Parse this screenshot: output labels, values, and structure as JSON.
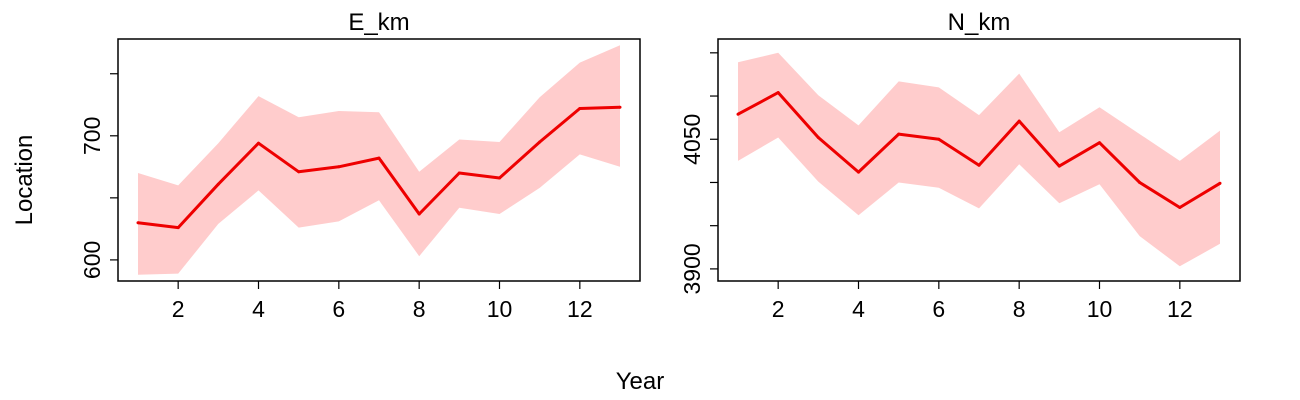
{
  "figure": {
    "shared_xlabel": "Year",
    "shared_ylabel": "Location"
  },
  "colors": {
    "line": "#ee0000",
    "band": "#ffcccc",
    "axis": "#000000"
  },
  "chart_data": [
    {
      "type": "line",
      "title": "E_km",
      "xlabel": "Year",
      "ylabel": "Location",
      "xlim": [
        1,
        13
      ],
      "ylim": [
        583,
        778
      ],
      "x": [
        1,
        2,
        3,
        4,
        5,
        6,
        7,
        8,
        9,
        10,
        11,
        12,
        13
      ],
      "xticks": [
        2,
        4,
        6,
        8,
        10,
        12
      ],
      "xtick_labels": [
        "2",
        "4",
        "6",
        "8",
        "10",
        "12"
      ],
      "yticks": [
        600,
        650,
        700,
        750
      ],
      "ytick_labels": [
        "600",
        "",
        "700",
        ""
      ],
      "series": [
        {
          "values": [
            630,
            626,
            661,
            694,
            671,
            675,
            682,
            637,
            670,
            666,
            695,
            722,
            723
          ],
          "lower": [
            588,
            589,
            629,
            656,
            626,
            631,
            648,
            603,
            642,
            637,
            658,
            685,
            675
          ],
          "upper": [
            670,
            660,
            694,
            732,
            715,
            720,
            719,
            671,
            697,
            695,
            731,
            759,
            773
          ]
        }
      ],
      "grid": false,
      "legend": "none"
    },
    {
      "type": "line",
      "title": "N_km",
      "xlabel": "Year",
      "ylabel": "Location",
      "xlim": [
        1,
        13
      ],
      "ylim": [
        3886,
        4166
      ],
      "x": [
        1,
        2,
        3,
        4,
        5,
        6,
        7,
        8,
        9,
        10,
        11,
        12,
        13
      ],
      "xticks": [
        2,
        4,
        6,
        8,
        10,
        12
      ],
      "xtick_labels": [
        "2",
        "4",
        "6",
        "8",
        "10",
        "12"
      ],
      "yticks": [
        3900,
        3950,
        4000,
        4050,
        4100,
        4150
      ],
      "ytick_labels": [
        "3900",
        "",
        "",
        "4050",
        "",
        ""
      ],
      "series": [
        {
          "values": [
            4079,
            4104,
            4052,
            4012,
            4056,
            4050,
            4020,
            4071,
            4019,
            4046,
            4000,
            3971,
            3999
          ],
          "lower": [
            4025,
            4052,
            4001,
            3962,
            4000,
            3994,
            3970,
            4021,
            3976,
            3998,
            3938,
            3903,
            3929
          ],
          "upper": [
            4139,
            4150,
            4101,
            4066,
            4117,
            4110,
            4078,
            4126,
            4058,
            4087,
            4056,
            4025,
            4060
          ]
        }
      ],
      "grid": false,
      "legend": "none"
    }
  ]
}
